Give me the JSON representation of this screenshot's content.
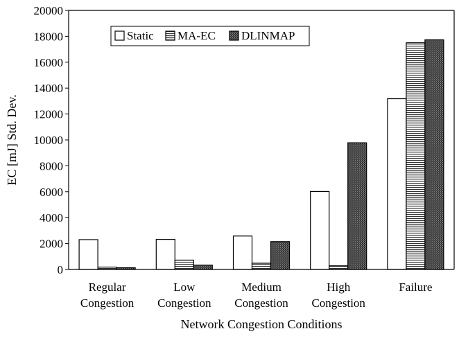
{
  "chart_data": {
    "type": "bar",
    "xlabel": "Network Congestion Conditions",
    "ylabel": "EC [mJ] Std. Dev.",
    "ylim": [
      0,
      20000
    ],
    "yticks": [
      0,
      2000,
      4000,
      6000,
      8000,
      10000,
      12000,
      14000,
      16000,
      18000,
      20000
    ],
    "ytick_labels": [
      "0",
      "2000",
      "4000",
      "6000",
      "8000",
      "10000",
      "12000",
      "14000",
      "16000",
      "18000",
      "20000"
    ],
    "grid": false,
    "legend_position": "top-left",
    "categories": [
      [
        "Regular",
        "Congestion"
      ],
      [
        "Low",
        "Congestion"
      ],
      [
        "Medium",
        "Congestion"
      ],
      [
        "High",
        "Congestion"
      ],
      [
        "Failure"
      ]
    ],
    "series": [
      {
        "name": "Static",
        "pattern": "white",
        "values": [
          2300,
          2320,
          2580,
          6020,
          13180
        ]
      },
      {
        "name": "MA-EC",
        "pattern": "horizontal-stripes",
        "values": [
          180,
          720,
          480,
          280,
          17500
        ]
      },
      {
        "name": "DLINMAP",
        "pattern": "dark-dots",
        "values": [
          130,
          330,
          2150,
          9780,
          17730
        ]
      }
    ]
  }
}
